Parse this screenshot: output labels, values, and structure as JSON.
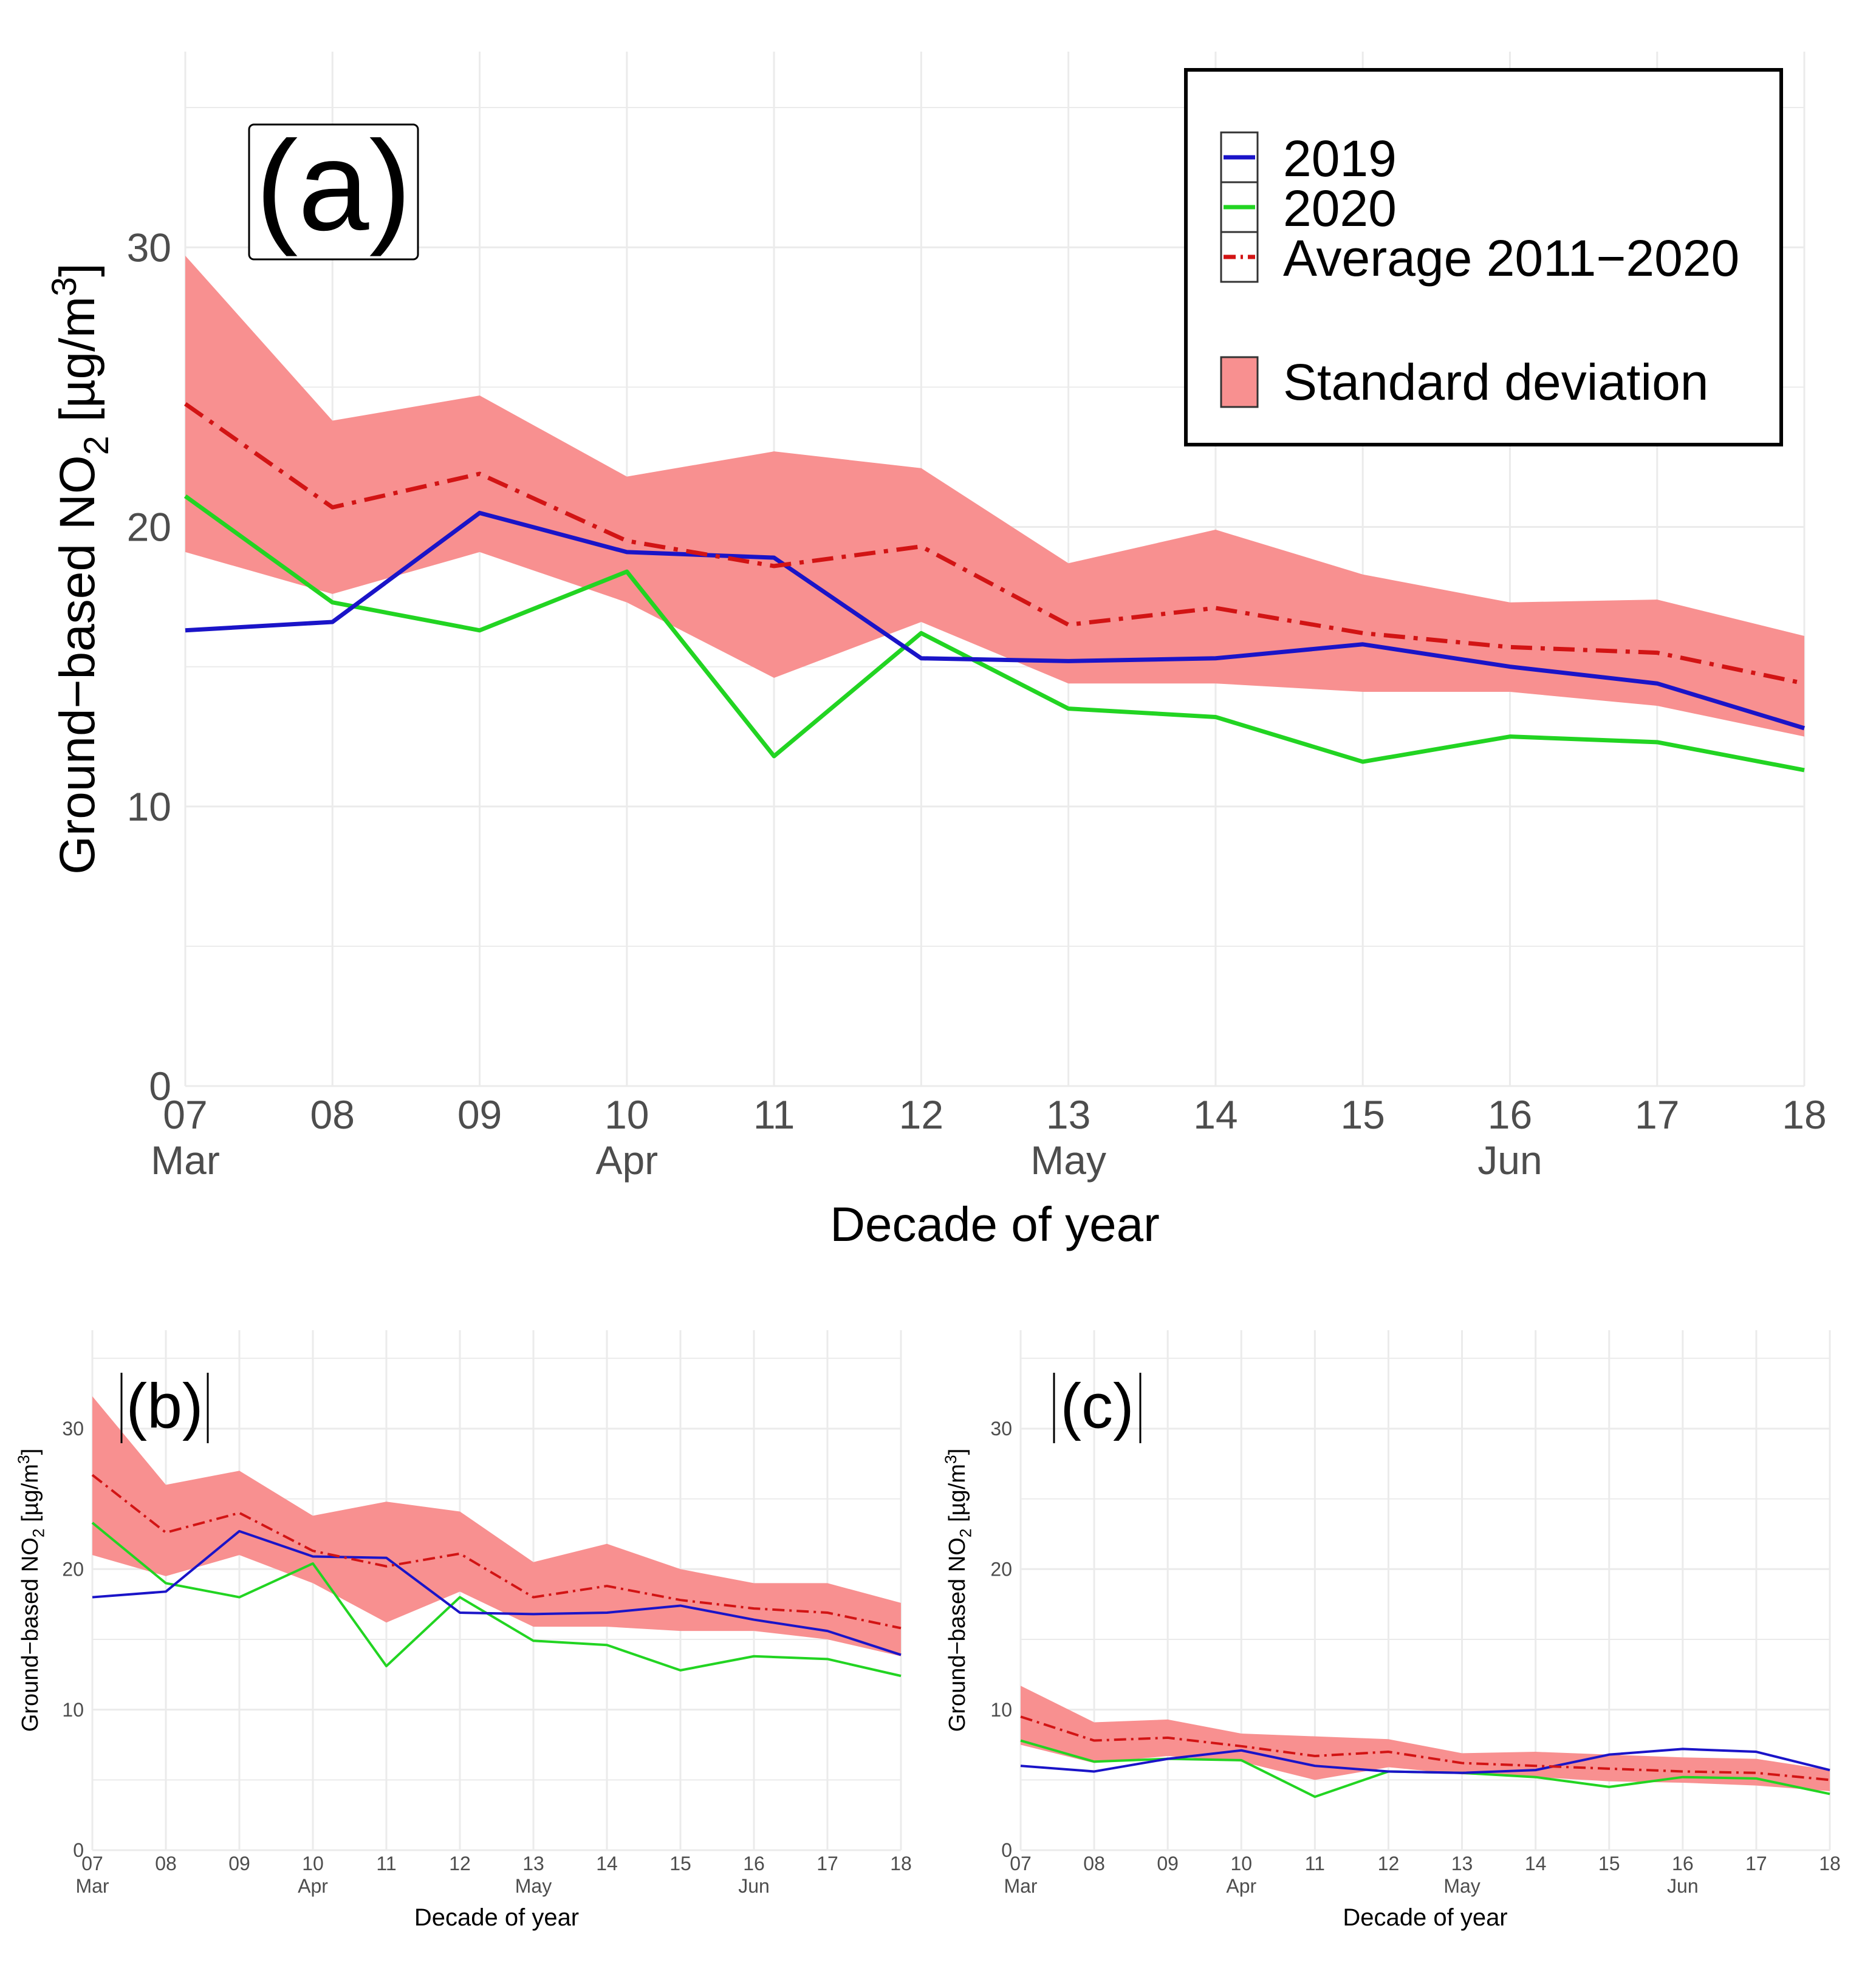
{
  "chart_data": [
    {
      "type": "line",
      "panel_label": "(a)",
      "xlabel": "Decade of year",
      "ylabel_prefix": "Ground−based NO",
      "ylabel_sub": "2",
      "ylabel_unit": " [µg/m",
      "ylabel_sup": "3",
      "ylabel_close": "]",
      "ylim": [
        0,
        37
      ],
      "yticks": [
        0,
        10,
        20,
        30
      ],
      "x": [
        7,
        8,
        9,
        10,
        11,
        12,
        13,
        14,
        15,
        16,
        17,
        18
      ],
      "tick_labels": [
        "07",
        "08",
        "09",
        "10",
        "11",
        "12",
        "13",
        "14",
        "15",
        "16",
        "17",
        "18"
      ],
      "month_labels": {
        "07": "Mar",
        "10": "Apr",
        "13": "May",
        "16": "Jun"
      },
      "series": [
        {
          "name": "2019",
          "color": "#1a14c8",
          "style": "solid",
          "values": [
            16.3,
            16.6,
            20.5,
            19.1,
            18.9,
            15.3,
            15.2,
            15.3,
            15.8,
            15.0,
            14.4,
            12.8
          ]
        },
        {
          "name": "2020",
          "color": "#22d422",
          "style": "solid",
          "values": [
            21.1,
            17.3,
            16.3,
            18.4,
            11.8,
            16.2,
            13.5,
            13.2,
            11.6,
            12.5,
            12.3,
            11.3
          ]
        },
        {
          "name": "Average 2011−2020",
          "color": "#d21414",
          "style": "dashdot",
          "values": [
            24.4,
            20.7,
            21.9,
            19.5,
            18.6,
            19.3,
            16.5,
            17.1,
            16.2,
            15.7,
            15.5,
            14.4
          ]
        }
      ],
      "band": {
        "name": "Standard deviation",
        "color": "#f89090",
        "upper": [
          29.7,
          23.8,
          24.7,
          21.8,
          22.7,
          22.1,
          18.7,
          19.9,
          18.3,
          17.3,
          17.4,
          16.1
        ],
        "lower": [
          19.1,
          17.6,
          19.1,
          17.3,
          14.6,
          16.6,
          14.4,
          14.4,
          14.1,
          14.1,
          13.6,
          12.5
        ]
      }
    },
    {
      "type": "line",
      "panel_label": "(b)",
      "xlabel": "Decade of year",
      "ylabel_prefix": "Ground−based NO",
      "ylabel_sub": "2",
      "ylabel_unit": " [µg/m",
      "ylabel_sup": "3",
      "ylabel_close": "]",
      "ylim": [
        0,
        37
      ],
      "yticks": [
        0,
        10,
        20,
        30
      ],
      "x": [
        7,
        8,
        9,
        10,
        11,
        12,
        13,
        14,
        15,
        16,
        17,
        18
      ],
      "tick_labels": [
        "07",
        "08",
        "09",
        "10",
        "11",
        "12",
        "13",
        "14",
        "15",
        "16",
        "17",
        "18"
      ],
      "month_labels": {
        "07": "Mar",
        "10": "Apr",
        "13": "May",
        "16": "Jun"
      },
      "series": [
        {
          "name": "2019",
          "color": "#1a14c8",
          "style": "solid",
          "values": [
            18.0,
            18.4,
            22.7,
            20.9,
            20.8,
            16.9,
            16.8,
            16.9,
            17.4,
            16.4,
            15.6,
            13.9
          ]
        },
        {
          "name": "2020",
          "color": "#22d422",
          "style": "solid",
          "values": [
            23.3,
            19.0,
            18.0,
            20.4,
            13.1,
            18.0,
            14.9,
            14.6,
            12.8,
            13.8,
            13.6,
            12.4
          ]
        },
        {
          "name": "Average 2011−2020",
          "color": "#d21414",
          "style": "dashdot",
          "values": [
            26.7,
            22.6,
            24.0,
            21.3,
            20.2,
            21.1,
            18.0,
            18.8,
            17.8,
            17.2,
            16.9,
            15.8
          ]
        }
      ],
      "band": {
        "name": "Standard deviation",
        "color": "#f89090",
        "upper": [
          32.3,
          26.0,
          27.0,
          23.8,
          24.8,
          24.1,
          20.5,
          21.8,
          20.0,
          19.0,
          19.0,
          17.6
        ],
        "lower": [
          21.0,
          19.5,
          21.0,
          19.0,
          16.2,
          18.4,
          15.9,
          15.9,
          15.6,
          15.6,
          15.0,
          13.8
        ]
      }
    },
    {
      "type": "line",
      "panel_label": "(c)",
      "xlabel": "Decade of year",
      "ylabel_prefix": "Ground−based NO",
      "ylabel_sub": "2",
      "ylabel_unit": " [µg/m",
      "ylabel_sup": "3",
      "ylabel_close": "]",
      "ylim": [
        0,
        37
      ],
      "yticks": [
        0,
        10,
        20,
        30
      ],
      "x": [
        7,
        8,
        9,
        10,
        11,
        12,
        13,
        14,
        15,
        16,
        17,
        18
      ],
      "tick_labels": [
        "07",
        "08",
        "09",
        "10",
        "11",
        "12",
        "13",
        "14",
        "15",
        "16",
        "17",
        "18"
      ],
      "month_labels": {
        "07": "Mar",
        "10": "Apr",
        "13": "May",
        "16": "Jun"
      },
      "series": [
        {
          "name": "2019",
          "color": "#1a14c8",
          "style": "solid",
          "values": [
            6.0,
            5.6,
            6.5,
            7.1,
            6.0,
            5.6,
            5.5,
            5.7,
            6.8,
            7.2,
            7.0,
            5.7
          ]
        },
        {
          "name": "2020",
          "color": "#22d422",
          "style": "solid",
          "values": [
            7.8,
            6.3,
            6.5,
            6.4,
            3.8,
            5.6,
            5.5,
            5.2,
            4.5,
            5.2,
            5.1,
            4.0
          ]
        },
        {
          "name": "Average 2011−2020",
          "color": "#d21414",
          "style": "dashdot",
          "values": [
            9.5,
            7.8,
            8.0,
            7.4,
            6.7,
            7.0,
            6.2,
            6.0,
            5.8,
            5.6,
            5.5,
            5.0
          ]
        }
      ],
      "band": {
        "name": "Standard deviation",
        "color": "#f89090",
        "upper": [
          11.7,
          9.1,
          9.3,
          8.3,
          8.1,
          7.9,
          6.9,
          7.0,
          6.8,
          6.6,
          6.5,
          5.7
        ]
      },
      "band_lower": [
        7.5,
        6.2,
        6.7,
        6.3,
        5.0,
        5.9,
        5.4,
        5.2,
        4.9,
        4.8,
        4.6,
        4.2
      ]
    }
  ],
  "legend": {
    "items": [
      {
        "label": "2019",
        "color": "#1a14c8",
        "kind": "line"
      },
      {
        "label": "2020",
        "color": "#22d422",
        "kind": "line"
      },
      {
        "label": "Average 2011−2020",
        "color": "#d21414",
        "kind": "dashdot"
      },
      {
        "label": "Standard deviation",
        "color": "#f89090",
        "kind": "fill"
      }
    ]
  }
}
